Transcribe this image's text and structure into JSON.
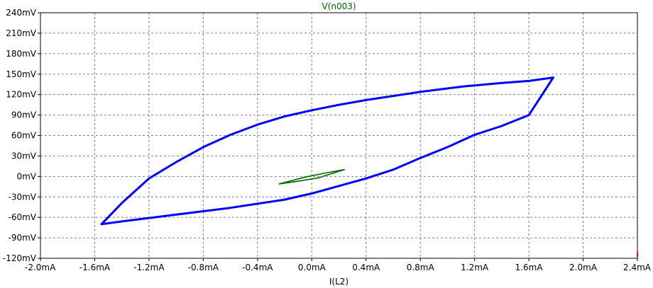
{
  "chart_data": {
    "type": "line",
    "title": "V(n003)",
    "xlabel": "I(L2)",
    "ylabel": "",
    "xlim": [
      -2.0,
      2.4
    ],
    "ylim": [
      -120,
      240
    ],
    "x_unit": "mA",
    "y_unit": "mV",
    "grid": true,
    "legend": "none",
    "x_ticks": [
      "-2.0mA",
      "-1.6mA",
      "-1.2mA",
      "-0.8mA",
      "-0.4mA",
      "0.0mA",
      "0.4mA",
      "0.8mA",
      "1.2mA",
      "1.6mA",
      "2.0mA",
      "2.4mA"
    ],
    "y_ticks": [
      "-120mV",
      "-90mV",
      "-60mV",
      "-30mV",
      "0mV",
      "30mV",
      "60mV",
      "90mV",
      "120mV",
      "150mV",
      "180mV",
      "210mV",
      "240mV"
    ],
    "colors": {
      "title": "#006400",
      "xlabel": "#000000",
      "grid": "#808080",
      "frame": "#000000",
      "main_series": "#0000ff",
      "inner_series": "#006400",
      "corner_marker": "#ff0000"
    },
    "series": [
      {
        "color": "#0000ff",
        "x": [
          -1.55,
          -1.4,
          -1.2,
          -1.0,
          -0.8,
          -0.6,
          -0.4,
          -0.2,
          0.0,
          0.2,
          0.4,
          0.6,
          0.8,
          1.0,
          1.2,
          1.4,
          1.6,
          1.78,
          1.6,
          1.4,
          1.12,
          1.0,
          0.8,
          0.6,
          0.4,
          0.2,
          0.0,
          -0.2,
          -0.4,
          -0.6,
          -0.8,
          -1.0,
          -1.2,
          -1.4,
          -1.55
        ],
        "y": [
          -70,
          -66,
          -61,
          -56,
          -51,
          -46,
          -40,
          -34,
          -25,
          -14,
          -3,
          10,
          27,
          43,
          61,
          74,
          90,
          145,
          140,
          137,
          132,
          129,
          124,
          118,
          112,
          105,
          97,
          88,
          76,
          61,
          43,
          21,
          -3,
          -39,
          -70
        ]
      },
      {
        "color": "#006400",
        "x": [
          -0.24,
          -0.1,
          0.05,
          0.24,
          0.1,
          -0.05,
          -0.24
        ],
        "y": [
          -11,
          -7,
          -2,
          10,
          5,
          -1,
          -11
        ]
      }
    ]
  }
}
